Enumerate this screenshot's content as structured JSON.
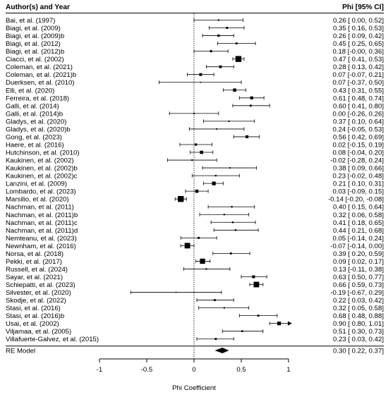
{
  "chart_data": {
    "type": "forest",
    "header_left": "Author(s) and Year",
    "header_right": "Phi [95% CI]",
    "xlabel": "Phi Coefficient",
    "xlim": [
      -1,
      1
    ],
    "xticks": [
      -1,
      -0.5,
      0,
      0.5,
      1
    ],
    "xtick_labels": [
      "-1",
      "-0.5",
      "0",
      "0.5",
      "1"
    ],
    "studies": [
      {
        "label": "Bai, et al. (1997)",
        "est": 0.26,
        "lo": 0.0,
        "hi": 0.52,
        "ci_text": "0.26 [ 0.00,  0.52]"
      },
      {
        "label": "Biagi, et al. (2009)",
        "est": 0.35,
        "lo": 0.16,
        "hi": 0.53,
        "ci_text": "0.35 [ 0.16,  0.53]"
      },
      {
        "label": "Biagi, et al. (2009)b",
        "est": 0.26,
        "lo": 0.09,
        "hi": 0.42,
        "ci_text": "0.26 [ 0.09,  0.42]"
      },
      {
        "label": "Biagi, et al. (2012)",
        "est": 0.45,
        "lo": 0.25,
        "hi": 0.65,
        "ci_text": "0.45 [ 0.25,  0.65]"
      },
      {
        "label": "Biagi, et al. (2012)b",
        "est": 0.18,
        "lo": -0.0,
        "hi": 0.36,
        "ci_text": "0.18 [-0.00,  0.36]"
      },
      {
        "label": "Ciacci, et al. (2002)",
        "est": 0.47,
        "lo": 0.41,
        "hi": 0.53,
        "ci_text": "0.47 [ 0.41,  0.53]"
      },
      {
        "label": "Coleman, et al. (2021)",
        "est": 0.28,
        "lo": 0.13,
        "hi": 0.42,
        "ci_text": "0.28 [ 0.13,  0.42]"
      },
      {
        "label": "Coleman, et al. (2021)b",
        "est": 0.07,
        "lo": -0.07,
        "hi": 0.21,
        "ci_text": "0.07 [-0.07,  0.21]"
      },
      {
        "label": "Duerksen, et al. (2010)",
        "est": 0.07,
        "lo": -0.37,
        "hi": 0.5,
        "ci_text": "0.07 [-0.37,  0.50]"
      },
      {
        "label": "Elli, et al. (2020)",
        "est": 0.43,
        "lo": 0.31,
        "hi": 0.55,
        "ci_text": "0.43 [ 0.31,  0.55]"
      },
      {
        "label": "Ferreira, et al. (2018)",
        "est": 0.61,
        "lo": 0.48,
        "hi": 0.74,
        "ci_text": "0.61 [ 0.48,  0.74]"
      },
      {
        "label": "Galli, et al. (2014)",
        "est": 0.6,
        "lo": 0.41,
        "hi": 0.8,
        "ci_text": "0.60 [ 0.41,  0.80]"
      },
      {
        "label": "Galli, et al. (2014)b",
        "est": 0.0,
        "lo": -0.26,
        "hi": 0.26,
        "ci_text": "0.00 [-0.26,  0.26]"
      },
      {
        "label": "Gladys, et al. (2020)",
        "est": 0.37,
        "lo": 0.1,
        "hi": 0.64,
        "ci_text": "0.37 [ 0.10,  0.64]"
      },
      {
        "label": "Gladys, et al. (2020)b",
        "est": 0.24,
        "lo": -0.05,
        "hi": 0.53,
        "ci_text": "0.24 [-0.05,  0.53]"
      },
      {
        "label": "Gong, et al. (2023)",
        "est": 0.56,
        "lo": 0.42,
        "hi": 0.69,
        "ci_text": "0.56 [ 0.42,  0.69]"
      },
      {
        "label": "Haere, et al. (2016)",
        "est": 0.02,
        "lo": -0.15,
        "hi": 0.19,
        "ci_text": "0.02 [-0.15,  0.19]"
      },
      {
        "label": "Hutchinson, et al. (2010)",
        "est": 0.08,
        "lo": -0.04,
        "hi": 0.2,
        "ci_text": "0.08 [-0.04,  0.20]"
      },
      {
        "label": "Kaukinen, et al. (2002)",
        "est": -0.02,
        "lo": -0.28,
        "hi": 0.24,
        "ci_text": "-0.02 [-0.28,  0.24]"
      },
      {
        "label": "Kaukinen, et al. (2002)b",
        "est": 0.38,
        "lo": 0.09,
        "hi": 0.66,
        "ci_text": "0.38 [ 0.09,  0.66]"
      },
      {
        "label": "Kaukinen, et al. (2002)c",
        "est": 0.23,
        "lo": -0.02,
        "hi": 0.48,
        "ci_text": "0.23 [-0.02,  0.48]"
      },
      {
        "label": "Lanzini, et al. (2009)",
        "est": 0.21,
        "lo": 0.1,
        "hi": 0.31,
        "ci_text": "0.21 [ 0.10,  0.31]"
      },
      {
        "label": "Lombardo, et al. (2023)",
        "est": 0.03,
        "lo": -0.09,
        "hi": 0.15,
        "ci_text": "0.03 [-0.09,  0.15]"
      },
      {
        "label": "Marsilio, et al. (2020)",
        "est": -0.14,
        "lo": -0.2,
        "hi": -0.08,
        "ci_text": "-0.14 [-0.20, -0.08]"
      },
      {
        "label": "Nachman, et al. (2011)",
        "est": 0.4,
        "lo": 0.15,
        "hi": 0.64,
        "ci_text": "0.40 [ 0.15,  0.64]"
      },
      {
        "label": "Nachman, et al. (2011)b",
        "est": 0.32,
        "lo": 0.06,
        "hi": 0.58,
        "ci_text": "0.32 [ 0.06,  0.58]"
      },
      {
        "label": "Nachman, et al. (2011)c",
        "est": 0.41,
        "lo": 0.18,
        "hi": 0.65,
        "ci_text": "0.41 [ 0.18,  0.65]"
      },
      {
        "label": "Nachman, et al. (2011)d",
        "est": 0.44,
        "lo": 0.21,
        "hi": 0.68,
        "ci_text": "0.44 [ 0.21,  0.68]"
      },
      {
        "label": "Nemteanu, et al. (2023)",
        "est": 0.05,
        "lo": -0.14,
        "hi": 0.24,
        "ci_text": "0.05 [-0.14,  0.24]"
      },
      {
        "label": "Newnham, et al. (2016)",
        "est": -0.07,
        "lo": -0.14,
        "hi": 0.0,
        "ci_text": "-0.07 [-0.14,  0.00]"
      },
      {
        "label": "Norsa, et al. (2018)",
        "est": 0.39,
        "lo": 0.2,
        "hi": 0.59,
        "ci_text": "0.39 [ 0.20,  0.59]"
      },
      {
        "label": "Pekki, et al. (2017)",
        "est": 0.09,
        "lo": 0.02,
        "hi": 0.17,
        "ci_text": "0.09 [ 0.02,  0.17]"
      },
      {
        "label": "Russell, et al. (2024)",
        "est": 0.13,
        "lo": -0.11,
        "hi": 0.38,
        "ci_text": "0.13 [-0.11,  0.38]"
      },
      {
        "label": "Sayar, et al. (2021)",
        "est": 0.63,
        "lo": 0.5,
        "hi": 0.77,
        "ci_text": "0.63 [ 0.50,  0.77]"
      },
      {
        "label": "Schiepatti, et al. (2023)",
        "est": 0.66,
        "lo": 0.59,
        "hi": 0.73,
        "ci_text": "0.66 [ 0.59,  0.73]"
      },
      {
        "label": "Silvester, et al. (2020)",
        "est": -0.19,
        "lo": -0.67,
        "hi": 0.29,
        "ci_text": "-0.19 [-0.67,  0.29]"
      },
      {
        "label": "Skodje, et al. (2022)",
        "est": 0.22,
        "lo": 0.03,
        "hi": 0.42,
        "ci_text": "0.22 [ 0.03,  0.42]"
      },
      {
        "label": "Stasi, et al. (2016)",
        "est": 0.32,
        "lo": 0.05,
        "hi": 0.58,
        "ci_text": "0.32 [ 0.05,  0.58]"
      },
      {
        "label": "Stasi, et al. (2016)b",
        "est": 0.68,
        "lo": 0.48,
        "hi": 0.88,
        "ci_text": "0.68 [ 0.48,  0.88]"
      },
      {
        "label": "Usai, et al. (2002)",
        "est": 0.9,
        "lo": 0.8,
        "hi": 1.01,
        "ci_text": "0.90 [ 0.80,  1.01]"
      },
      {
        "label": "Viljamaa, et al. (2005)",
        "est": 0.51,
        "lo": 0.3,
        "hi": 0.73,
        "ci_text": "0.51 [ 0.30,  0.73]"
      },
      {
        "label": "Villafuerte-Galvez, et al. (2015)",
        "est": 0.23,
        "lo": 0.03,
        "hi": 0.42,
        "ci_text": "0.23 [ 0.03,  0.42]"
      }
    ],
    "summary": {
      "label": "RE Model",
      "est": 0.3,
      "lo": 0.22,
      "hi": 0.37,
      "ci_text": "0.30 [ 0.22,  0.37]"
    }
  }
}
